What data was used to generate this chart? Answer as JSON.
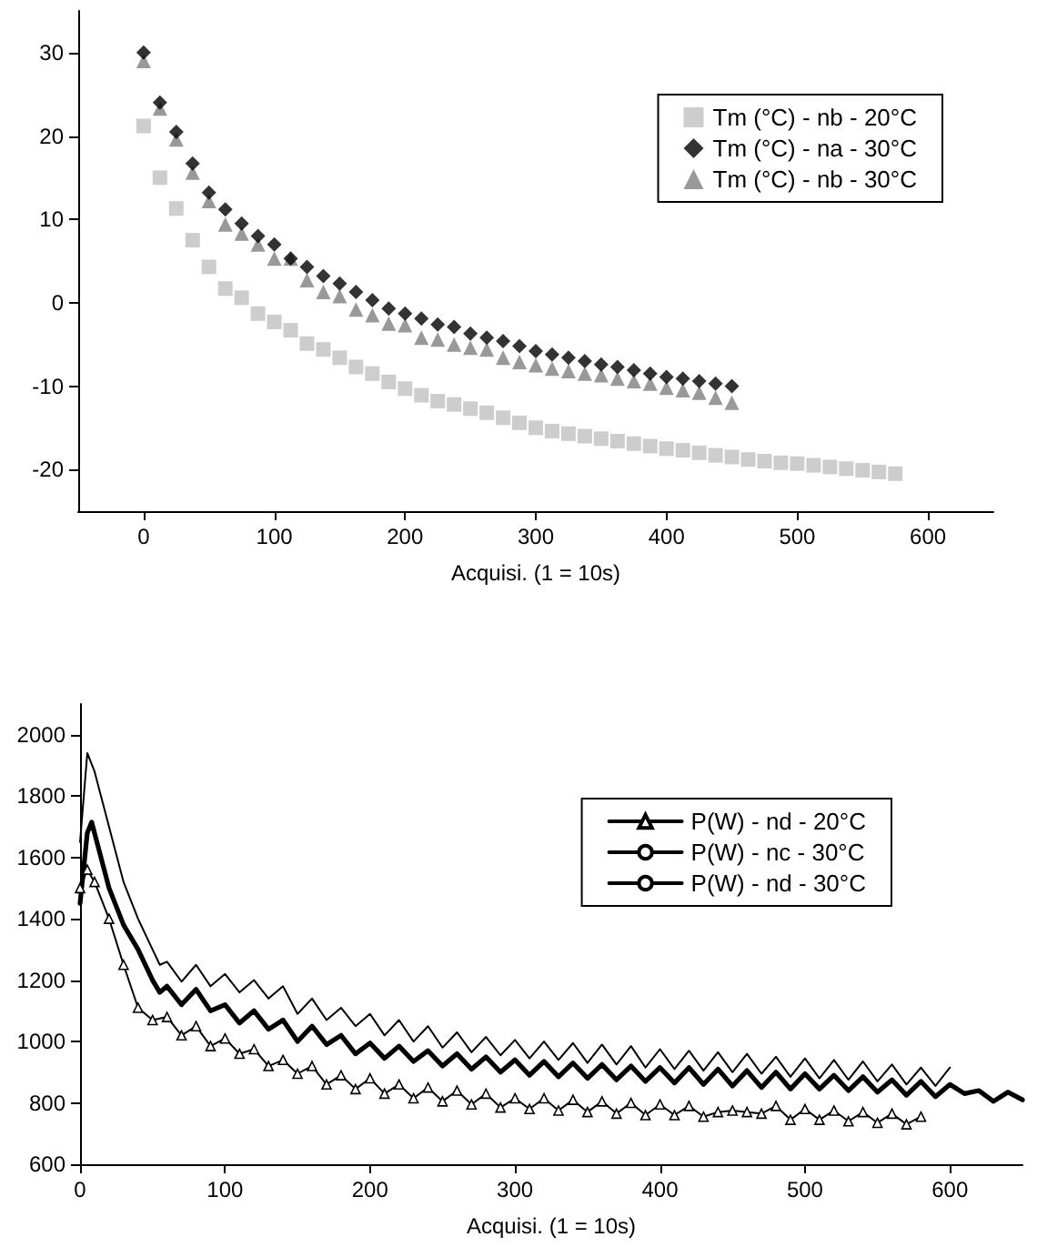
{
  "chart_data": [
    {
      "type": "scatter",
      "xlabel": "Acquisi. (1 = 10s)",
      "xlim": [
        -50,
        650
      ],
      "xticks": [
        0,
        100,
        200,
        300,
        400,
        500,
        600
      ],
      "ylim": [
        -25,
        35
      ],
      "yticks": [
        -20,
        -10,
        0,
        10,
        20,
        30
      ],
      "grid": false,
      "legend": "top right",
      "series": [
        {
          "name": "Tm (°C) - nb - 20°C",
          "color": "#c0c0c0",
          "marker": "square",
          "x": [
            0,
            12.5,
            25,
            37.5,
            50,
            62.5,
            75,
            87.5,
            100,
            112.5,
            125,
            137.5,
            150,
            162.5,
            175,
            187.5,
            200,
            212.5,
            225,
            237.5,
            250,
            262.5,
            275,
            287.5,
            300,
            312.5,
            325,
            337.5,
            350,
            362.5,
            375,
            387.5,
            400,
            412.5,
            425,
            437.5,
            450,
            462.5,
            475,
            487.5,
            500,
            512.5,
            525,
            537.5,
            550,
            562.5,
            575
          ],
          "values": [
            21.2,
            15,
            11.3,
            7.5,
            4.3,
            1.7,
            0.6,
            -1.3,
            -2.3,
            -3.3,
            -4.9,
            -5.6,
            -6.6,
            -7.7,
            -8.5,
            -9.5,
            -10.3,
            -11.1,
            -11.8,
            -12.2,
            -12.7,
            -13.2,
            -13.8,
            -14.4,
            -15,
            -15.4,
            -15.7,
            -16,
            -16.3,
            -16.6,
            -16.9,
            -17.2,
            -17.5,
            -17.7,
            -18,
            -18.3,
            -18.5,
            -18.8,
            -19,
            -19.2,
            -19.3,
            -19.5,
            -19.7,
            -19.9,
            -20.1,
            -20.3,
            -20.5
          ]
        },
        {
          "name": "Tm (°C) - na - 30°C",
          "color": "#000000",
          "marker": "diamond",
          "x": [
            0,
            12.5,
            25,
            37.5,
            50,
            62.5,
            75,
            87.5,
            100,
            112.5,
            125,
            137.5,
            150,
            162.5,
            175,
            187.5,
            200,
            212.5,
            225,
            237.5,
            250,
            262.5,
            275,
            287.5,
            300,
            312.5,
            325,
            337.5,
            350,
            362.5,
            375,
            387.5,
            400,
            412.5,
            425,
            437.5,
            450
          ],
          "values": [
            30,
            24,
            20.5,
            16.7,
            13.2,
            11.2,
            9.5,
            8,
            7,
            5.3,
            4.3,
            3.2,
            2.3,
            1.3,
            0.3,
            -0.7,
            -1.3,
            -1.9,
            -2.6,
            -2.9,
            -3.7,
            -4.2,
            -4.6,
            -5.2,
            -5.8,
            -6.2,
            -6.6,
            -7,
            -7.4,
            -7.7,
            -8.1,
            -8.5,
            -8.9,
            -9.1,
            -9.4,
            -9.7,
            -10
          ]
        },
        {
          "name": "Tm (°C) - nb - 30°C",
          "color": "#808080",
          "marker": "triangle",
          "x": [
            0,
            12.5,
            25,
            37.5,
            50,
            62.5,
            75,
            87.5,
            100,
            112.5,
            125,
            137.5,
            150,
            162.5,
            175,
            187.5,
            200,
            212.5,
            225,
            237.5,
            250,
            262.5,
            275,
            287.5,
            300,
            312.5,
            325,
            337.5,
            350,
            362.5,
            375,
            387.5,
            400,
            412.5,
            425,
            437.5,
            450
          ],
          "values": [
            29,
            23.3,
            19.6,
            15.6,
            12.2,
            9.4,
            8.3,
            7,
            5.3,
            5.3,
            2.7,
            1.3,
            0.8,
            -0.8,
            -1.5,
            -2.5,
            -2.7,
            -4.2,
            -4.4,
            -5,
            -5.4,
            -5.6,
            -6.6,
            -7.1,
            -7.5,
            -7.9,
            -8.2,
            -8.5,
            -8.7,
            -9.1,
            -9.4,
            -9.7,
            -10.2,
            -10.5,
            -10.8,
            -11.4,
            -12
          ]
        }
      ]
    },
    {
      "type": "line",
      "xlabel": "Acquisi. (1 = 10s)",
      "xlim": [
        0,
        650
      ],
      "xticks": [
        0,
        100,
        200,
        300,
        400,
        500,
        600
      ],
      "ylim": [
        600,
        2100
      ],
      "yticks": [
        600,
        800,
        1000,
        1200,
        1400,
        1600,
        1800,
        2000
      ],
      "grid": false,
      "legend": "top right",
      "series": [
        {
          "name": "P(W) - nd - 20°C",
          "color": "#000000",
          "marker": "triangle",
          "x": [
            0,
            5,
            10,
            20,
            30,
            40,
            50,
            60,
            70,
            80,
            90,
            100,
            110,
            120,
            130,
            140,
            150,
            160,
            170,
            180,
            190,
            200,
            210,
            220,
            230,
            240,
            250,
            260,
            270,
            280,
            290,
            300,
            310,
            320,
            330,
            340,
            350,
            360,
            370,
            380,
            390,
            400,
            410,
            420,
            430,
            440,
            450,
            460,
            470,
            480,
            490,
            500,
            510,
            520,
            530,
            540,
            550,
            560,
            570,
            580
          ],
          "values": [
            1500,
            1560,
            1520,
            1400,
            1250,
            1110,
            1070,
            1080,
            1020,
            1050,
            985,
            1010,
            960,
            975,
            920,
            940,
            895,
            920,
            860,
            890,
            845,
            880,
            830,
            860,
            815,
            850,
            805,
            840,
            795,
            830,
            785,
            815,
            780,
            815,
            775,
            810,
            770,
            805,
            765,
            800,
            760,
            795,
            760,
            790,
            755,
            770,
            775,
            770,
            765,
            790,
            745,
            780,
            745,
            775,
            740,
            770,
            735,
            765,
            730,
            755
          ]
        },
        {
          "name": "P(W) - nc - 30°C",
          "color": "#000000",
          "marker": "none",
          "x": [
            0,
            5,
            8,
            20,
            30,
            40,
            50,
            55,
            60,
            70,
            80,
            90,
            100,
            110,
            120,
            130,
            140,
            150,
            160,
            170,
            180,
            190,
            200,
            210,
            220,
            230,
            240,
            250,
            260,
            270,
            280,
            290,
            300,
            310,
            320,
            330,
            340,
            350,
            360,
            370,
            380,
            390,
            400,
            410,
            420,
            430,
            440,
            450,
            460,
            470,
            480,
            490,
            500,
            510,
            520,
            530,
            540,
            550,
            560,
            570,
            580,
            590,
            600,
            610,
            620,
            630,
            640,
            650
          ],
          "values": [
            1450,
            1680,
            1715,
            1500,
            1380,
            1300,
            1200,
            1160,
            1180,
            1120,
            1170,
            1100,
            1120,
            1060,
            1100,
            1040,
            1070,
            1000,
            1050,
            990,
            1020,
            960,
            995,
            945,
            985,
            935,
            970,
            920,
            960,
            910,
            950,
            900,
            940,
            890,
            935,
            885,
            930,
            880,
            925,
            875,
            920,
            870,
            915,
            865,
            915,
            860,
            910,
            855,
            905,
            850,
            900,
            845,
            895,
            845,
            890,
            840,
            885,
            835,
            875,
            825,
            870,
            820,
            860,
            830,
            840,
            805,
            835,
            810
          ]
        },
        {
          "name": "P(W) - nd - 30°C",
          "color": "#000000",
          "marker": "none",
          "x": [
            0,
            5,
            10,
            20,
            30,
            40,
            50,
            55,
            60,
            70,
            80,
            90,
            100,
            110,
            120,
            130,
            140,
            150,
            160,
            170,
            180,
            190,
            200,
            210,
            220,
            230,
            240,
            250,
            260,
            270,
            280,
            290,
            300,
            310,
            320,
            330,
            340,
            350,
            360,
            370,
            380,
            390,
            400,
            410,
            420,
            430,
            440,
            450,
            460,
            470,
            480,
            490,
            500,
            510,
            520,
            530,
            540,
            550,
            560,
            570,
            580,
            590,
            600
          ],
          "values": [
            1650,
            1940,
            1880,
            1700,
            1520,
            1400,
            1300,
            1250,
            1260,
            1195,
            1250,
            1180,
            1220,
            1160,
            1200,
            1140,
            1180,
            1090,
            1140,
            1070,
            1110,
            1050,
            1090,
            1020,
            1070,
            1000,
            1050,
            980,
            1030,
            965,
            1015,
            955,
            1005,
            945,
            1000,
            940,
            995,
            930,
            990,
            925,
            985,
            915,
            975,
            910,
            970,
            905,
            965,
            900,
            960,
            895,
            950,
            885,
            945,
            880,
            940,
            875,
            935,
            870,
            925,
            860,
            915,
            855,
            915
          ]
        }
      ]
    }
  ]
}
